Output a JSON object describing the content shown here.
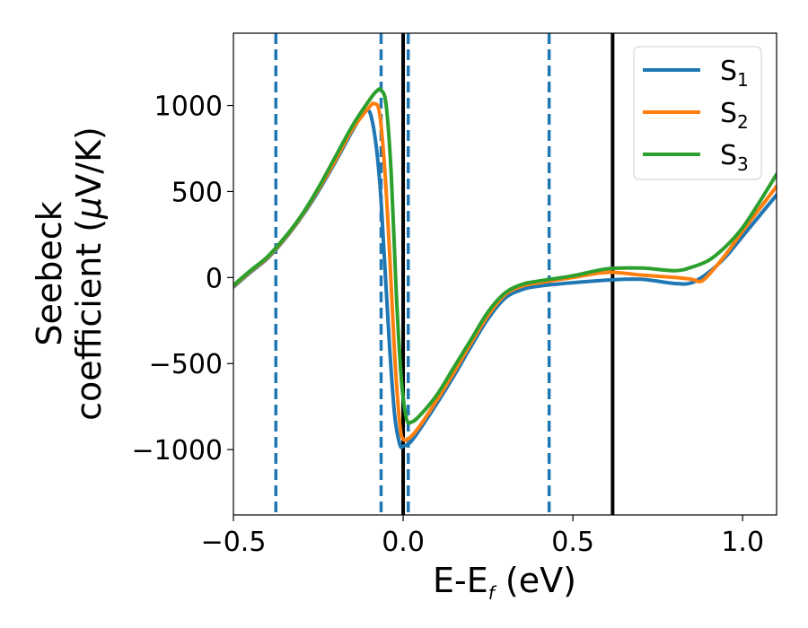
{
  "chart_data": {
    "type": "line",
    "title": "",
    "xlabel": {
      "main": "E-E",
      "sub": "f",
      "unit": " (eV)"
    },
    "ylabel": {
      "line1": "Seebeck",
      "line2_prefix": "coefficient  (",
      "line2_mu": "μ",
      "line2_suffix": "V/K)"
    },
    "xlim": [
      -0.5,
      1.1
    ],
    "ylim": [
      -1380,
      1420
    ],
    "x_ticks": [
      -0.5,
      0.0,
      0.5,
      1.0
    ],
    "x_tick_labels": [
      "−0.5",
      "0.0",
      "0.5",
      "1.0"
    ],
    "y_ticks": [
      -1000,
      -500,
      0,
      500,
      1000
    ],
    "y_tick_labels": [
      "−1000",
      "−500",
      "0",
      "500",
      "1000"
    ],
    "grid": false,
    "legend_position": "top-right",
    "vertical_lines": [
      {
        "x": -0.375,
        "style": "dashed",
        "color": "#1f77b4"
      },
      {
        "x": -0.065,
        "style": "dashed",
        "color": "#1f77b4"
      },
      {
        "x": 0.015,
        "style": "dashed",
        "color": "#1f77b4"
      },
      {
        "x": 0.43,
        "style": "dashed",
        "color": "#1f77b4"
      },
      {
        "x": 0.0,
        "style": "solid",
        "color": "#000000"
      },
      {
        "x": 0.617,
        "style": "solid",
        "color": "#000000"
      }
    ],
    "series": [
      {
        "name": "S",
        "sub": "1",
        "color": "#1f77b4",
        "points": [
          [
            -0.5,
            -55
          ],
          [
            -0.45,
            30
          ],
          [
            -0.4,
            110
          ],
          [
            -0.35,
            220
          ],
          [
            -0.3,
            350
          ],
          [
            -0.25,
            500
          ],
          [
            -0.2,
            670
          ],
          [
            -0.15,
            850
          ],
          [
            -0.11,
            970
          ],
          [
            -0.09,
            900
          ],
          [
            -0.07,
            580
          ],
          [
            -0.055,
            100
          ],
          [
            -0.04,
            -400
          ],
          [
            -0.025,
            -800
          ],
          [
            -0.01,
            -970
          ],
          [
            0.0,
            -980
          ],
          [
            0.02,
            -960
          ],
          [
            0.05,
            -880
          ],
          [
            0.1,
            -730
          ],
          [
            0.15,
            -570
          ],
          [
            0.2,
            -400
          ],
          [
            0.25,
            -240
          ],
          [
            0.3,
            -120
          ],
          [
            0.35,
            -70
          ],
          [
            0.4,
            -50
          ],
          [
            0.5,
            -30
          ],
          [
            0.6,
            -15
          ],
          [
            0.7,
            -10
          ],
          [
            0.8,
            -35
          ],
          [
            0.85,
            -30
          ],
          [
            0.9,
            30
          ],
          [
            0.95,
            120
          ],
          [
            1.0,
            240
          ],
          [
            1.05,
            360
          ],
          [
            1.1,
            480
          ]
        ]
      },
      {
        "name": "S",
        "sub": "2",
        "color": "#ff7f0e",
        "points": [
          [
            -0.5,
            -50
          ],
          [
            -0.45,
            35
          ],
          [
            -0.4,
            115
          ],
          [
            -0.35,
            225
          ],
          [
            -0.3,
            355
          ],
          [
            -0.25,
            510
          ],
          [
            -0.2,
            680
          ],
          [
            -0.15,
            860
          ],
          [
            -0.1,
            990
          ],
          [
            -0.085,
            1010
          ],
          [
            -0.07,
            960
          ],
          [
            -0.055,
            650
          ],
          [
            -0.04,
            150
          ],
          [
            -0.025,
            -450
          ],
          [
            -0.01,
            -850
          ],
          [
            0.0,
            -940
          ],
          [
            0.02,
            -930
          ],
          [
            0.05,
            -860
          ],
          [
            0.1,
            -710
          ],
          [
            0.15,
            -550
          ],
          [
            0.2,
            -380
          ],
          [
            0.25,
            -220
          ],
          [
            0.3,
            -100
          ],
          [
            0.35,
            -50
          ],
          [
            0.4,
            -30
          ],
          [
            0.5,
            0
          ],
          [
            0.6,
            30
          ],
          [
            0.7,
            15
          ],
          [
            0.8,
            0
          ],
          [
            0.85,
            -10
          ],
          [
            0.88,
            -20
          ],
          [
            0.92,
            60
          ],
          [
            0.96,
            160
          ],
          [
            1.0,
            270
          ],
          [
            1.05,
            400
          ],
          [
            1.1,
            530
          ]
        ]
      },
      {
        "name": "S",
        "sub": "3",
        "color": "#2ca02c",
        "points": [
          [
            -0.5,
            -45
          ],
          [
            -0.45,
            40
          ],
          [
            -0.4,
            120
          ],
          [
            -0.35,
            230
          ],
          [
            -0.3,
            360
          ],
          [
            -0.25,
            520
          ],
          [
            -0.2,
            700
          ],
          [
            -0.15,
            880
          ],
          [
            -0.1,
            1030
          ],
          [
            -0.08,
            1080
          ],
          [
            -0.065,
            1090
          ],
          [
            -0.05,
            1000
          ],
          [
            -0.035,
            600
          ],
          [
            -0.02,
            -100
          ],
          [
            -0.005,
            -600
          ],
          [
            0.01,
            -820
          ],
          [
            0.025,
            -840
          ],
          [
            0.05,
            -800
          ],
          [
            0.1,
            -680
          ],
          [
            0.15,
            -520
          ],
          [
            0.2,
            -360
          ],
          [
            0.25,
            -200
          ],
          [
            0.3,
            -90
          ],
          [
            0.35,
            -40
          ],
          [
            0.4,
            -20
          ],
          [
            0.5,
            10
          ],
          [
            0.6,
            50
          ],
          [
            0.7,
            55
          ],
          [
            0.8,
            40
          ],
          [
            0.85,
            60
          ],
          [
            0.9,
            100
          ],
          [
            0.95,
            180
          ],
          [
            1.0,
            290
          ],
          [
            1.05,
            440
          ],
          [
            1.1,
            600
          ]
        ]
      }
    ]
  }
}
